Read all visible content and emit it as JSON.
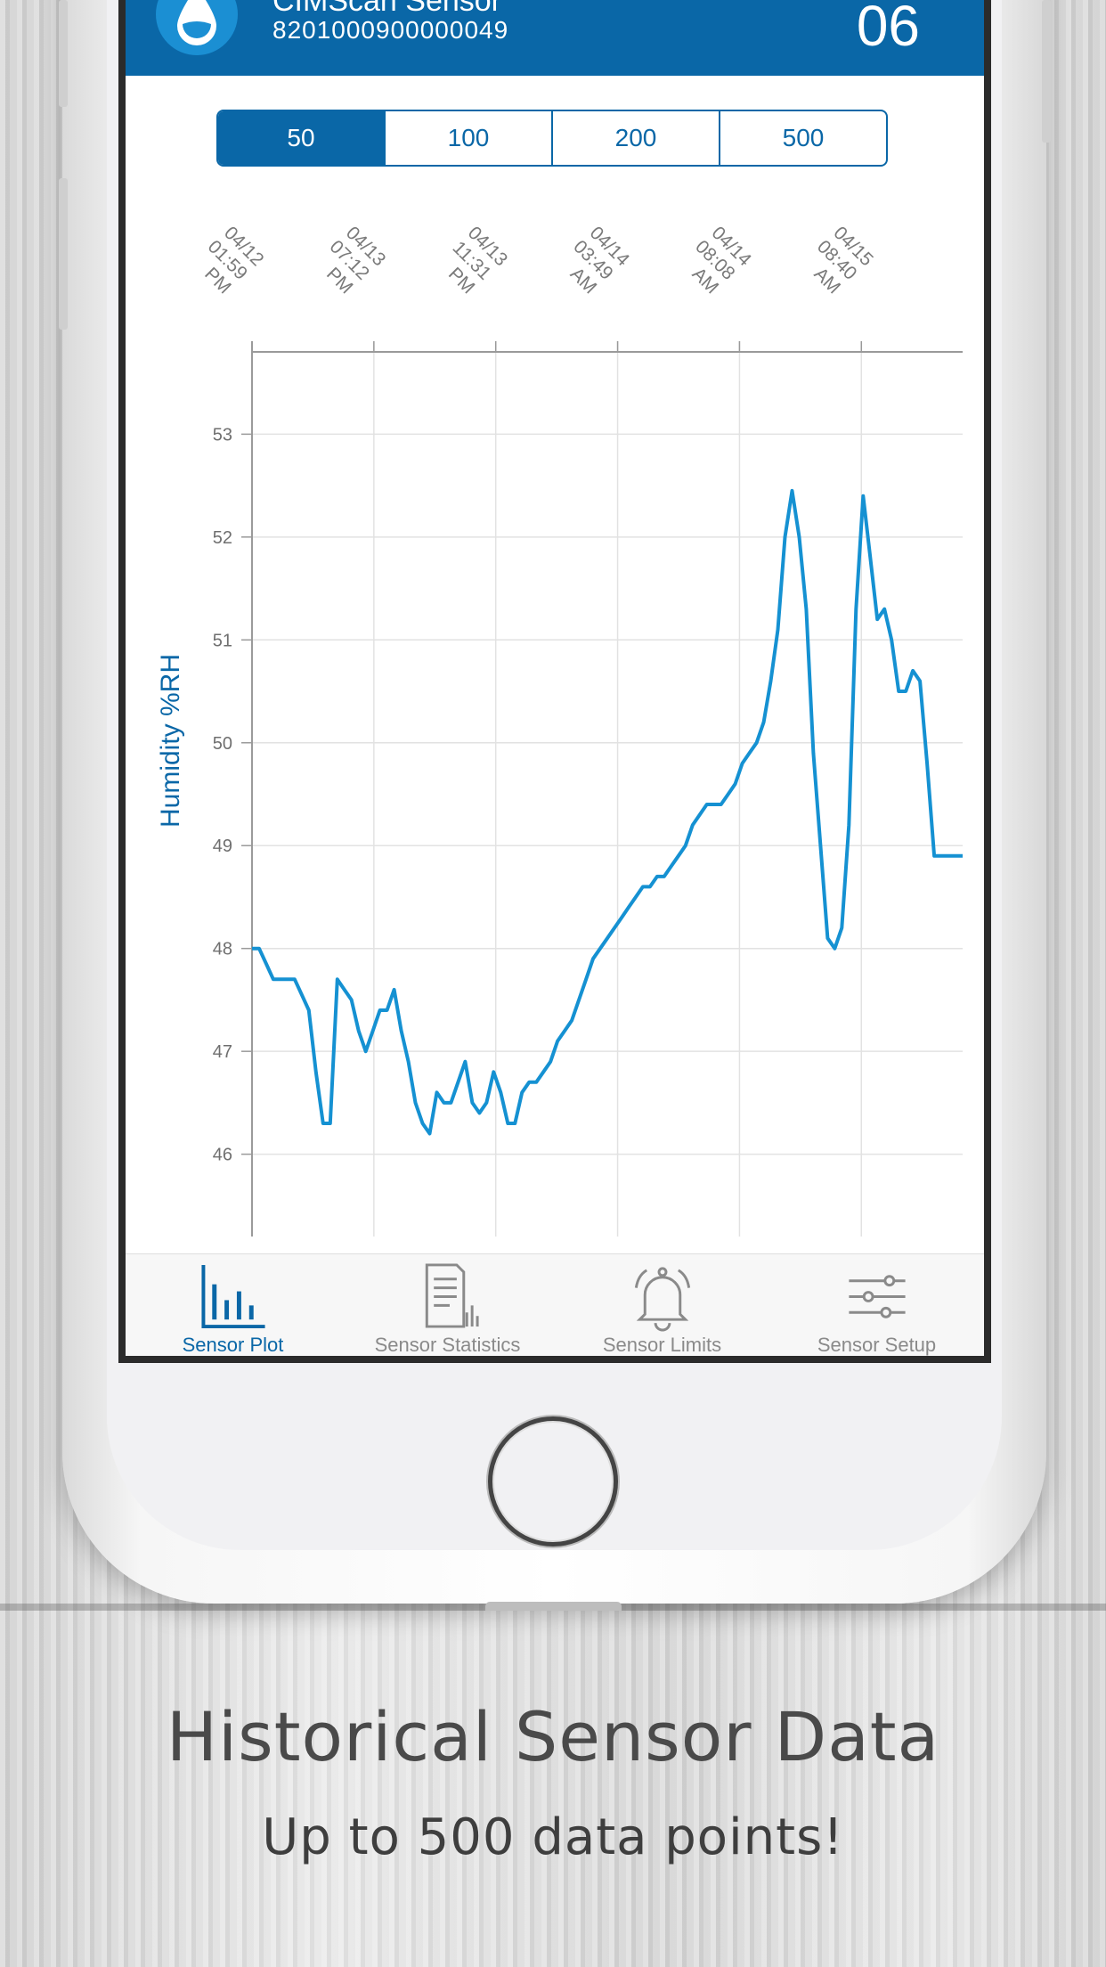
{
  "header": {
    "title": "CIMScan Sensor",
    "sensor_id": "8201000900000049",
    "value": "06",
    "icon": "humidity-drop-icon"
  },
  "range_selector": {
    "options": [
      "50",
      "100",
      "200",
      "500"
    ],
    "selected": "50"
  },
  "chart_data": {
    "type": "line",
    "ylabel": "Humidity %RH",
    "yticks": [
      46,
      47,
      48,
      49,
      50,
      51,
      52,
      53
    ],
    "ylim": [
      45.2,
      53.8
    ],
    "xlim": [
      0,
      100
    ],
    "x_tick_labels": [
      {
        "pos": 0,
        "lines": [
          "04/12",
          "01:59",
          "PM"
        ]
      },
      {
        "pos": 17.15,
        "lines": [
          "04/13",
          "07:12",
          "PM"
        ]
      },
      {
        "pos": 34.3,
        "lines": [
          "04/13",
          "11:31",
          "PM"
        ]
      },
      {
        "pos": 51.45,
        "lines": [
          "04/14",
          "03:49",
          "AM"
        ]
      },
      {
        "pos": 68.6,
        "lines": [
          "04/14",
          "08:08",
          "AM"
        ]
      },
      {
        "pos": 85.75,
        "lines": [
          "04/15",
          "08:40",
          "AM"
        ]
      }
    ],
    "grid": true,
    "line_color": "#1591d2",
    "series": [
      {
        "x": [
          0,
          1,
          2,
          3,
          4,
          5,
          6,
          7,
          8,
          9,
          10,
          11,
          12,
          13,
          14,
          15,
          16,
          17,
          18,
          19,
          20,
          21,
          22,
          23,
          24,
          25,
          26,
          27,
          28,
          29,
          30,
          31,
          32,
          33,
          34,
          35,
          36,
          37,
          38,
          39,
          40,
          41,
          42,
          43,
          44,
          45,
          46,
          47,
          48,
          49,
          50,
          51,
          52,
          53,
          54,
          55,
          56,
          57,
          58,
          59,
          60,
          61,
          62,
          63,
          64,
          65,
          66,
          67,
          68,
          69,
          70,
          71,
          72,
          73,
          74,
          75,
          76,
          77,
          78,
          79,
          80,
          81,
          82,
          83,
          84,
          85,
          86,
          87,
          88,
          89,
          90,
          91,
          92,
          93,
          94,
          95,
          96,
          97,
          98,
          99,
          100
        ],
        "values": [
          48.0,
          48.0,
          47.85,
          47.7,
          47.7,
          47.7,
          47.7,
          47.55,
          47.4,
          46.8,
          46.3,
          46.3,
          47.7,
          47.6,
          47.5,
          47.2,
          47.0,
          47.2,
          47.4,
          47.4,
          47.6,
          47.2,
          46.9,
          46.5,
          46.3,
          46.2,
          46.6,
          46.5,
          46.5,
          46.7,
          46.9,
          46.5,
          46.4,
          46.5,
          46.8,
          46.6,
          46.3,
          46.3,
          46.6,
          46.7,
          46.7,
          46.8,
          46.9,
          47.1,
          47.2,
          47.3,
          47.5,
          47.7,
          47.9,
          48.0,
          48.1,
          48.2,
          48.3,
          48.4,
          48.5,
          48.6,
          48.6,
          48.7,
          48.7,
          48.8,
          48.9,
          49.0,
          49.2,
          49.3,
          49.4,
          49.4,
          49.4,
          49.5,
          49.6,
          49.8,
          49.9,
          50.0,
          50.2,
          50.6,
          51.1,
          52.0,
          52.45,
          52.0,
          51.3,
          49.9,
          49.0,
          48.1,
          48.0,
          48.2,
          49.2,
          51.3,
          52.4,
          51.8,
          51.2,
          51.3,
          51.0,
          50.5,
          50.5,
          50.7,
          50.6,
          49.8,
          48.9,
          48.9,
          48.9,
          48.9,
          48.9
        ]
      }
    ]
  },
  "tabs": [
    {
      "label": "Sensor Plot",
      "icon": "bar-chart-icon",
      "active": true
    },
    {
      "label": "Sensor Statistics",
      "icon": "document-chart-icon",
      "active": false
    },
    {
      "label": "Sensor Limits",
      "icon": "bell-icon",
      "active": false
    },
    {
      "label": "Sensor Setup",
      "icon": "sliders-icon",
      "active": false
    }
  ],
  "caption": {
    "title": "Historical Sensor Data",
    "subtitle": "Up to 500 data points!"
  }
}
